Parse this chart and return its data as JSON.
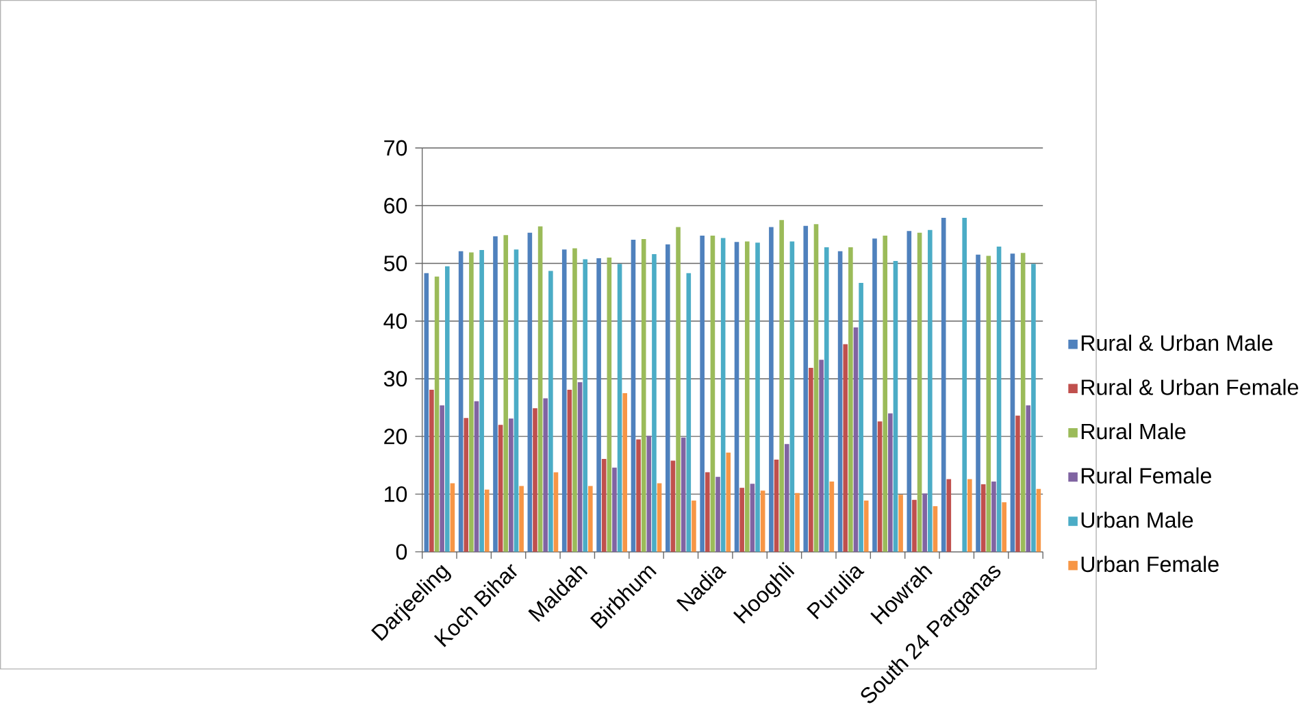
{
  "chart_data": {
    "type": "bar",
    "categories": [
      "Darjeeling",
      null,
      "Koch Bihar",
      null,
      "Maldah",
      null,
      "Birbhum",
      null,
      "Nadia",
      null,
      "Hooghli",
      null,
      "Purulia",
      null,
      "Howrah",
      null,
      "South 24 Parganas",
      null
    ],
    "series": [
      {
        "name": "Rural & Urban Male",
        "color": "#4f81bd",
        "values": [
          48.3,
          52.1,
          54.7,
          55.3,
          52.4,
          50.9,
          54.1,
          53.3,
          54.8,
          53.7,
          56.3,
          56.5,
          52.1,
          54.3,
          55.6,
          57.9,
          51.5,
          51.7
        ]
      },
      {
        "name": "Rural & Urban Female",
        "color": "#c0504d",
        "values": [
          28.1,
          23.2,
          22.0,
          24.9,
          28.1,
          16.1,
          19.5,
          15.8,
          13.8,
          11.1,
          16.0,
          31.9,
          36.0,
          22.6,
          9.0,
          12.6,
          11.7,
          23.6
        ]
      },
      {
        "name": "Rural Male",
        "color": "#9bbb59",
        "values": [
          47.7,
          51.9,
          54.9,
          56.4,
          52.6,
          51.0,
          54.2,
          56.3,
          54.8,
          53.8,
          57.5,
          56.8,
          52.8,
          54.8,
          55.3,
          null,
          51.3,
          51.8
        ]
      },
      {
        "name": "Rural Female",
        "color": "#8064a2",
        "values": [
          25.4,
          26.1,
          23.1,
          26.6,
          29.4,
          14.6,
          20.1,
          19.8,
          13.0,
          11.8,
          18.7,
          33.3,
          38.9,
          24.0,
          10.1,
          null,
          12.2,
          25.4
        ]
      },
      {
        "name": "Urban Male",
        "color": "#4bacc6",
        "values": [
          49.5,
          52.3,
          52.4,
          48.7,
          50.7,
          49.9,
          51.6,
          48.3,
          54.4,
          53.6,
          53.8,
          52.8,
          46.6,
          50.4,
          55.8,
          57.9,
          52.9,
          49.9
        ]
      },
      {
        "name": "Urban Female",
        "color": "#f79646",
        "values": [
          11.9,
          10.8,
          11.4,
          13.8,
          11.4,
          27.5,
          11.9,
          8.9,
          17.2,
          10.6,
          10.2,
          12.2,
          8.9,
          9.9,
          7.9,
          12.6,
          8.6,
          10.9
        ]
      }
    ],
    "ylim": [
      0,
      70
    ],
    "yticks": [
      0,
      10,
      20,
      30,
      40,
      50,
      60,
      70
    ],
    "grid": "y",
    "legend": "right"
  }
}
